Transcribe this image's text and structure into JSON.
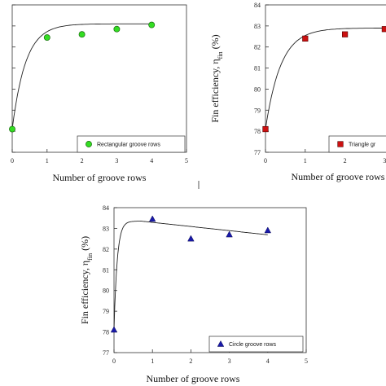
{
  "chart_data": [
    {
      "type": "scatter",
      "title": "",
      "xlabel": "Number of groove rows",
      "ylabel": "",
      "xlim": [
        0,
        5
      ],
      "ylim": [
        77,
        84
      ],
      "xticks": [
        "0",
        "1",
        "2",
        "3",
        "4",
        "5"
      ],
      "yticks": [],
      "grid": false,
      "legend_position": "bottom-right",
      "series": [
        {
          "name": "Rectangular groove rows",
          "marker": "circle",
          "color": "#33dd22",
          "x": [
            0,
            1,
            2,
            3,
            4
          ],
          "y": [
            78.1,
            82.45,
            82.6,
            82.85,
            83.05
          ],
          "fit": "saturating"
        }
      ]
    },
    {
      "type": "scatter",
      "title": "",
      "xlabel": "Number of groove rows",
      "ylabel": "Fin efficiency, η",
      "ylabel_sub": "fin",
      "ylabel_unit": "(%)",
      "xlim": [
        0,
        5
      ],
      "ylim": [
        77,
        84
      ],
      "xticks": [
        "0",
        "1",
        "2",
        "3"
      ],
      "yticks": [
        "77",
        "78",
        "79",
        "80",
        "81",
        "82",
        "83",
        "84"
      ],
      "grid": false,
      "legend_position": "bottom-right",
      "series": [
        {
          "name": "Triangle gr",
          "marker": "square",
          "color": "#cc1111",
          "x": [
            0,
            1,
            2,
            3
          ],
          "y": [
            78.1,
            82.4,
            82.6,
            82.85
          ],
          "fit": "saturating"
        }
      ]
    },
    {
      "type": "scatter",
      "title": "",
      "xlabel": "Number of groove rows",
      "ylabel": "Fin efficiency, η",
      "ylabel_sub": "fin",
      "ylabel_unit": "(%)",
      "xlim": [
        0,
        5
      ],
      "ylim": [
        77,
        84
      ],
      "xticks": [
        "0",
        "1",
        "2",
        "3",
        "4",
        "5"
      ],
      "yticks": [
        "77",
        "78",
        "79",
        "80",
        "81",
        "82",
        "83",
        "84"
      ],
      "grid": false,
      "legend_position": "bottom-right",
      "series": [
        {
          "name": "Circle groove rows",
          "marker": "triangle",
          "color": "#1a1aaa",
          "x": [
            0,
            1,
            2,
            3,
            4
          ],
          "y": [
            78.1,
            83.45,
            82.5,
            82.7,
            82.9
          ],
          "fit": "peak"
        }
      ]
    }
  ]
}
